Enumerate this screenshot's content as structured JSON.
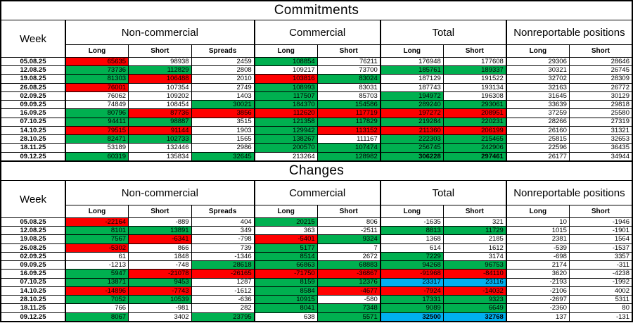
{
  "colors": {
    "red": "#ff0000",
    "green": "#00b050",
    "blue": "#00b0f0",
    "grid": "#000000"
  },
  "sections": [
    {
      "title": "Commitments",
      "week_label": "Week",
      "groups": [
        "Non-commercial",
        "Commercial",
        "Total",
        "Nonreportable positions"
      ],
      "sub_headers": [
        "Long",
        "Short",
        "Spreads",
        "Long",
        "Short",
        "Long",
        "Short",
        "Long",
        "Short"
      ],
      "rows": [
        {
          "week": "05.08.25",
          "cells": [
            [
              "65635",
              "r"
            ],
            [
              "98938",
              ""
            ],
            [
              "2459",
              ""
            ],
            [
              "108854",
              "g"
            ],
            [
              "76211",
              ""
            ],
            [
              "176948",
              ""
            ],
            [
              "177608",
              ""
            ],
            [
              "29306",
              ""
            ],
            [
              "28646",
              ""
            ]
          ]
        },
        {
          "week": "12.08.25",
          "cells": [
            [
              "73736",
              "g"
            ],
            [
              "112829",
              "g"
            ],
            [
              "2808",
              ""
            ],
            [
              "109217",
              ""
            ],
            [
              "73700",
              ""
            ],
            [
              "185761",
              "g"
            ],
            [
              "189337",
              "g"
            ],
            [
              "30321",
              ""
            ],
            [
              "26745",
              ""
            ]
          ]
        },
        {
          "week": "19.08.25",
          "cells": [
            [
              "81303",
              "g"
            ],
            [
              "106488",
              "r"
            ],
            [
              "2010",
              ""
            ],
            [
              "103816",
              "r"
            ],
            [
              "83024",
              "g"
            ],
            [
              "187129",
              ""
            ],
            [
              "191522",
              ""
            ],
            [
              "32702",
              ""
            ],
            [
              "28309",
              ""
            ]
          ]
        },
        {
          "week": "26.08.25",
          "cells": [
            [
              "76001",
              "r"
            ],
            [
              "107354",
              ""
            ],
            [
              "2749",
              ""
            ],
            [
              "108993",
              "g"
            ],
            [
              "83031",
              ""
            ],
            [
              "187743",
              ""
            ],
            [
              "193134",
              ""
            ],
            [
              "32163",
              ""
            ],
            [
              "26772",
              ""
            ]
          ]
        },
        {
          "week": "02.09.25",
          "cells": [
            [
              "76062",
              ""
            ],
            [
              "109202",
              ""
            ],
            [
              "1403",
              ""
            ],
            [
              "117507",
              "g"
            ],
            [
              "85703",
              ""
            ],
            [
              "194972",
              "g"
            ],
            [
              "196308",
              ""
            ],
            [
              "31645",
              ""
            ],
            [
              "30129",
              ""
            ]
          ]
        },
        {
          "week": "09.09.25",
          "cells": [
            [
              "74849",
              ""
            ],
            [
              "108454",
              ""
            ],
            [
              "30021",
              "g"
            ],
            [
              "184370",
              "g"
            ],
            [
              "154586",
              "g"
            ],
            [
              "289240",
              "g"
            ],
            [
              "293061",
              "g"
            ],
            [
              "33639",
              ""
            ],
            [
              "29818",
              ""
            ]
          ]
        },
        {
          "week": "16.09.25",
          "cells": [
            [
              "80796",
              "g"
            ],
            [
              "87736",
              "r"
            ],
            [
              "3856",
              "r"
            ],
            [
              "112620",
              "r"
            ],
            [
              "117719",
              "r"
            ],
            [
              "197272",
              "r"
            ],
            [
              "208951",
              "r"
            ],
            [
              "37259",
              ""
            ],
            [
              "25580",
              ""
            ]
          ]
        },
        {
          "week": "07.10.25",
          "cells": [
            [
              "94411",
              "g"
            ],
            [
              "98887",
              "g"
            ],
            [
              "3515",
              ""
            ],
            [
              "121358",
              "g"
            ],
            [
              "117829",
              "g"
            ],
            [
              "219284",
              "g"
            ],
            [
              "220231",
              "g"
            ],
            [
              "28266",
              ""
            ],
            [
              "27319",
              ""
            ]
          ]
        },
        {
          "week": "14.10.25",
          "cells": [
            [
              "79515",
              "r"
            ],
            [
              "91144",
              "r"
            ],
            [
              "1903",
              ""
            ],
            [
              "129942",
              "g"
            ],
            [
              "113152",
              "r"
            ],
            [
              "211360",
              "r"
            ],
            [
              "206199",
              "r"
            ],
            [
              "26160",
              ""
            ],
            [
              "31321",
              ""
            ]
          ]
        },
        {
          "week": "28.10.25",
          "cells": [
            [
              "82471",
              "g"
            ],
            [
              "102733",
              "g"
            ],
            [
              "1565",
              ""
            ],
            [
              "138267",
              "g"
            ],
            [
              "111167",
              ""
            ],
            [
              "222303",
              "g"
            ],
            [
              "215465",
              "g"
            ],
            [
              "25815",
              ""
            ],
            [
              "32653",
              ""
            ]
          ]
        },
        {
          "week": "18.11.25",
          "cells": [
            [
              "53189",
              ""
            ],
            [
              "132446",
              ""
            ],
            [
              "2986",
              ""
            ],
            [
              "200570",
              "g"
            ],
            [
              "107474",
              "g"
            ],
            [
              "256745",
              "g"
            ],
            [
              "242906",
              "g"
            ],
            [
              "22596",
              ""
            ],
            [
              "36435",
              ""
            ]
          ]
        },
        {
          "week": "09.12.25",
          "cells": [
            [
              "60319",
              "g"
            ],
            [
              "135834",
              ""
            ],
            [
              "32645",
              "g"
            ],
            [
              "213264",
              ""
            ],
            [
              "128982",
              "g"
            ],
            [
              "306228",
              "g",
              "b"
            ],
            [
              "297461",
              "g",
              "b"
            ],
            [
              "26177",
              ""
            ],
            [
              "34944",
              ""
            ]
          ]
        }
      ]
    },
    {
      "title": "Changes",
      "week_label": "Week",
      "groups": [
        "Non-commercial",
        "Commercial",
        "Total",
        "Nonreportable positions"
      ],
      "sub_headers": [
        "Long",
        "Short",
        "Spreads",
        "Long",
        "Short",
        "Long",
        "Short",
        "Long",
        "Short"
      ],
      "rows": [
        {
          "week": "05.08.25",
          "cells": [
            [
              "-22164",
              "r"
            ],
            [
              "-889",
              ""
            ],
            [
              "404",
              ""
            ],
            [
              "20215",
              "g"
            ],
            [
              "806",
              ""
            ],
            [
              "-1635",
              ""
            ],
            [
              "321",
              ""
            ],
            [
              "10",
              ""
            ],
            [
              "-1946",
              ""
            ]
          ]
        },
        {
          "week": "12.08.25",
          "cells": [
            [
              "8101",
              "g"
            ],
            [
              "13891",
              "g"
            ],
            [
              "349",
              ""
            ],
            [
              "363",
              ""
            ],
            [
              "-2511",
              ""
            ],
            [
              "8813",
              "g"
            ],
            [
              "11729",
              "g"
            ],
            [
              "1015",
              ""
            ],
            [
              "-1901",
              ""
            ]
          ]
        },
        {
          "week": "19.08.25",
          "cells": [
            [
              "7567",
              "g"
            ],
            [
              "-6341",
              "r"
            ],
            [
              "-798",
              ""
            ],
            [
              "-5401",
              "r"
            ],
            [
              "9324",
              "g"
            ],
            [
              "1368",
              ""
            ],
            [
              "2185",
              ""
            ],
            [
              "2381",
              ""
            ],
            [
              "1564",
              ""
            ]
          ]
        },
        {
          "week": "26.08.25",
          "cells": [
            [
              "-5302",
              "r"
            ],
            [
              "866",
              ""
            ],
            [
              "739",
              ""
            ],
            [
              "5177",
              "g"
            ],
            [
              "7",
              ""
            ],
            [
              "614",
              ""
            ],
            [
              "1612",
              ""
            ],
            [
              "-539",
              ""
            ],
            [
              "-1537",
              ""
            ]
          ]
        },
        {
          "week": "02.09.25",
          "cells": [
            [
              "61",
              ""
            ],
            [
              "1848",
              ""
            ],
            [
              "-1346",
              ""
            ],
            [
              "8514",
              "g"
            ],
            [
              "2672",
              ""
            ],
            [
              "7229",
              "g"
            ],
            [
              "3174",
              ""
            ],
            [
              "-698",
              ""
            ],
            [
              "3357",
              ""
            ]
          ]
        },
        {
          "week": "09.09.25",
          "cells": [
            [
              "-1213",
              ""
            ],
            [
              "-748",
              ""
            ],
            [
              "28618",
              "g"
            ],
            [
              "66863",
              "g"
            ],
            [
              "68883",
              "g"
            ],
            [
              "94268",
              "g"
            ],
            [
              "96753",
              "g"
            ],
            [
              "2174",
              ""
            ],
            [
              "-311",
              ""
            ]
          ]
        },
        {
          "week": "16.09.25",
          "cells": [
            [
              "5947",
              "g"
            ],
            [
              "-21078",
              "r"
            ],
            [
              "-26165",
              "r"
            ],
            [
              "-71750",
              "r"
            ],
            [
              "-36867",
              "r"
            ],
            [
              "-91968",
              "r"
            ],
            [
              "-84110",
              "r"
            ],
            [
              "3620",
              ""
            ],
            [
              "-4238",
              ""
            ]
          ]
        },
        {
          "week": "07.10.25",
          "cells": [
            [
              "13871",
              "g"
            ],
            [
              "9453",
              "g"
            ],
            [
              "1287",
              ""
            ],
            [
              "8159",
              "g"
            ],
            [
              "12376",
              "g"
            ],
            [
              "23317",
              "u"
            ],
            [
              "23116",
              "u"
            ],
            [
              "-2193",
              ""
            ],
            [
              "-1992",
              ""
            ]
          ]
        },
        {
          "week": "14.10.25",
          "cells": [
            [
              "-14896",
              "r"
            ],
            [
              "-7743",
              "r"
            ],
            [
              "-1612",
              ""
            ],
            [
              "8584",
              "g"
            ],
            [
              "-4677",
              "r"
            ],
            [
              "-7924",
              "r"
            ],
            [
              "-14032",
              "r"
            ],
            [
              "-2106",
              ""
            ],
            [
              "4002",
              ""
            ]
          ]
        },
        {
          "week": "28.10.25",
          "cells": [
            [
              "7052",
              "g"
            ],
            [
              "10539",
              "g"
            ],
            [
              "-636",
              ""
            ],
            [
              "10915",
              "g"
            ],
            [
              "-580",
              ""
            ],
            [
              "17331",
              "g"
            ],
            [
              "9323",
              "g"
            ],
            [
              "-2697",
              ""
            ],
            [
              "5311",
              ""
            ]
          ]
        },
        {
          "week": "18.11.25",
          "cells": [
            [
              "766",
              ""
            ],
            [
              "-981",
              ""
            ],
            [
              "282",
              ""
            ],
            [
              "8041",
              "g"
            ],
            [
              "7348",
              "g"
            ],
            [
              "9089",
              "g"
            ],
            [
              "6649",
              "g"
            ],
            [
              "-2360",
              ""
            ],
            [
              "80",
              ""
            ]
          ]
        },
        {
          "week": "09.12.25",
          "cells": [
            [
              "8067",
              "g"
            ],
            [
              "3402",
              ""
            ],
            [
              "23795",
              "g"
            ],
            [
              "638",
              ""
            ],
            [
              "5571",
              "g"
            ],
            [
              "32500",
              "u",
              "b"
            ],
            [
              "32768",
              "u",
              "b"
            ],
            [
              "137",
              ""
            ],
            [
              "-131",
              ""
            ]
          ]
        }
      ]
    }
  ]
}
